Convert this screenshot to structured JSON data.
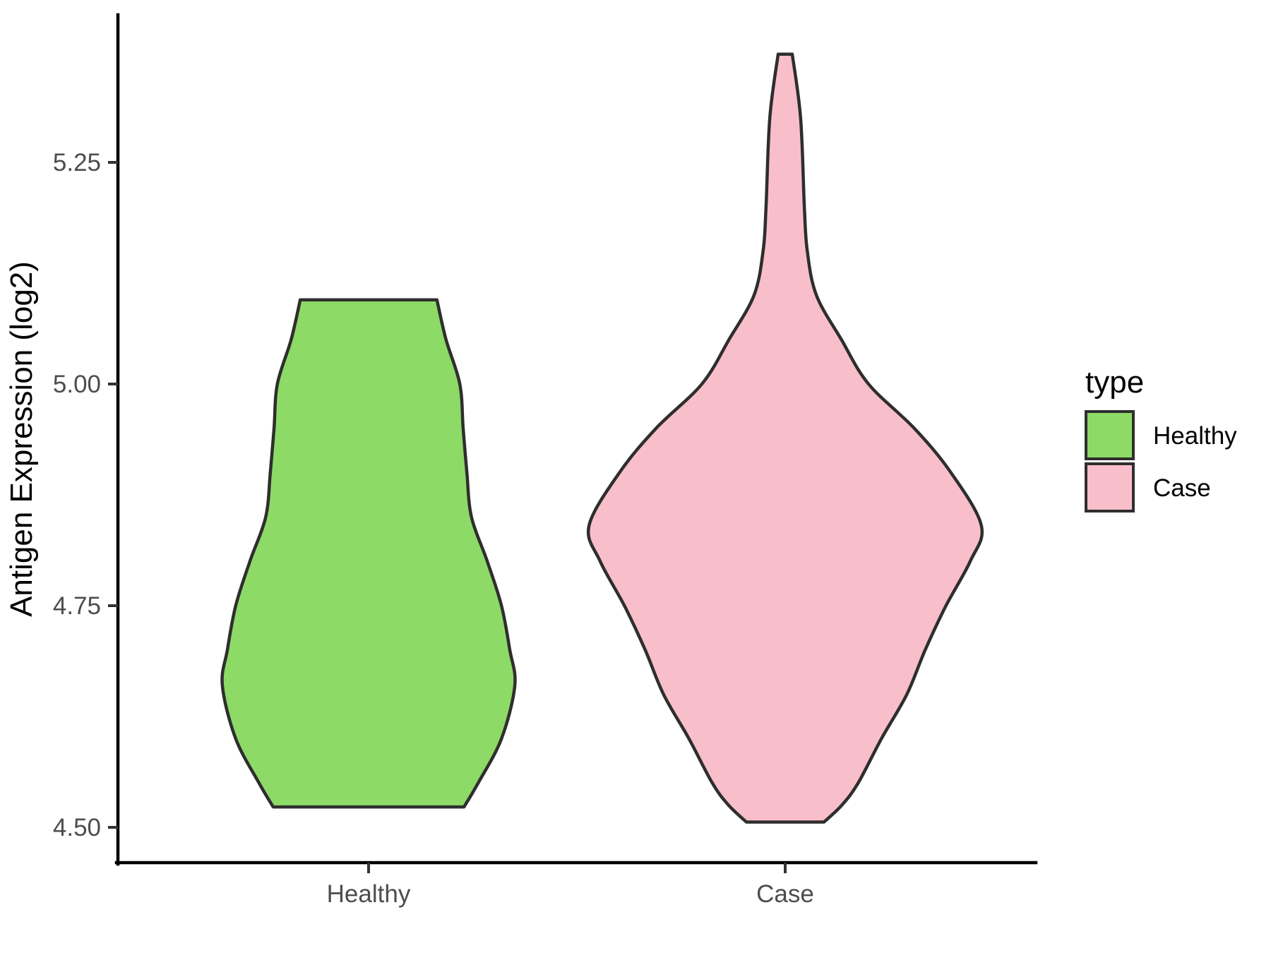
{
  "chart_data": {
    "type": "violin",
    "title": "",
    "xlabel": "",
    "ylabel": "Antigen Expression (log2)",
    "categories": [
      "Healthy",
      "Case"
    ],
    "y_ticks": [
      5.25,
      5.0,
      4.75,
      4.5
    ],
    "y_tick_labels": [
      "5.25",
      "5.00",
      "4.75",
      "4.50"
    ],
    "ylim": [
      4.43,
      5.41
    ],
    "grid": "off",
    "background": "#ffffff",
    "stroke_color": "#2e2e2e",
    "legend": {
      "title": "type",
      "position": "right",
      "entries": [
        {
          "label": "Healthy",
          "color": "#8dda67"
        },
        {
          "label": "Case",
          "color": "#f8bfcb"
        }
      ]
    },
    "series": [
      {
        "name": "Healthy",
        "fill": "#8dda67",
        "min_value": 4.523,
        "max_value": 5.095,
        "widest_at": 4.66,
        "profile": [
          [
            5.095,
            0.164
          ],
          [
            5.05,
            0.186
          ],
          [
            5.0,
            0.219
          ],
          [
            4.95,
            0.227
          ],
          [
            4.9,
            0.236
          ],
          [
            4.85,
            0.247
          ],
          [
            4.8,
            0.285
          ],
          [
            4.75,
            0.319
          ],
          [
            4.7,
            0.339
          ],
          [
            4.66,
            0.351
          ],
          [
            4.6,
            0.319
          ],
          [
            4.55,
            0.263
          ],
          [
            4.523,
            0.229
          ]
        ]
      },
      {
        "name": "Case",
        "fill": "#f8bfcb",
        "min_value": 4.506,
        "max_value": 5.372,
        "widest_at": 4.84,
        "profile": [
          [
            5.372,
            0.017
          ],
          [
            5.3,
            0.037
          ],
          [
            5.2,
            0.046
          ],
          [
            5.15,
            0.053
          ],
          [
            5.1,
            0.075
          ],
          [
            5.05,
            0.135
          ],
          [
            5.0,
            0.2
          ],
          [
            4.95,
            0.31
          ],
          [
            4.9,
            0.398
          ],
          [
            4.84,
            0.471
          ],
          [
            4.8,
            0.444
          ],
          [
            4.75,
            0.386
          ],
          [
            4.7,
            0.336
          ],
          [
            4.65,
            0.292
          ],
          [
            4.6,
            0.231
          ],
          [
            4.55,
            0.175
          ],
          [
            4.525,
            0.136
          ],
          [
            4.506,
            0.093
          ]
        ]
      }
    ]
  }
}
